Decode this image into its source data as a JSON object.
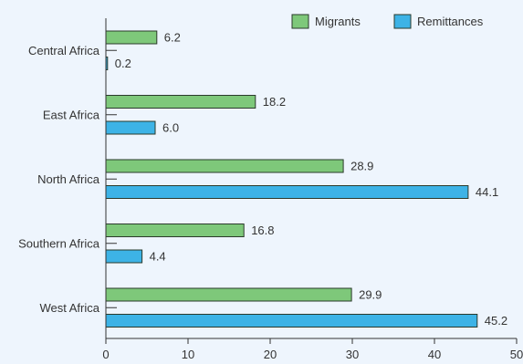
{
  "background": "#eef5fd",
  "chart_data": {
    "type": "bar",
    "orientation": "horizontal",
    "categories": [
      "Central Africa",
      "East Africa",
      "North Africa",
      "Southern Africa",
      "West Africa"
    ],
    "series": [
      {
        "name": "Migrants",
        "color": "#7ec87a",
        "values": [
          6.2,
          18.2,
          28.9,
          16.8,
          29.9
        ]
      },
      {
        "name": "Remittances",
        "color": "#3db3e6",
        "values": [
          0.2,
          6.0,
          44.1,
          4.4,
          45.2
        ]
      }
    ],
    "value_labels": [
      [
        "6.2",
        "18.2",
        "28.9",
        "16.8",
        "29.9"
      ],
      [
        "0.2",
        "6.0",
        "44.1",
        "4.4",
        "45.2"
      ]
    ],
    "xlim": [
      0,
      50
    ],
    "xticks": [
      "0",
      "10",
      "20",
      "30",
      "40",
      "50"
    ],
    "legend_position": "top-right",
    "grid": false
  }
}
